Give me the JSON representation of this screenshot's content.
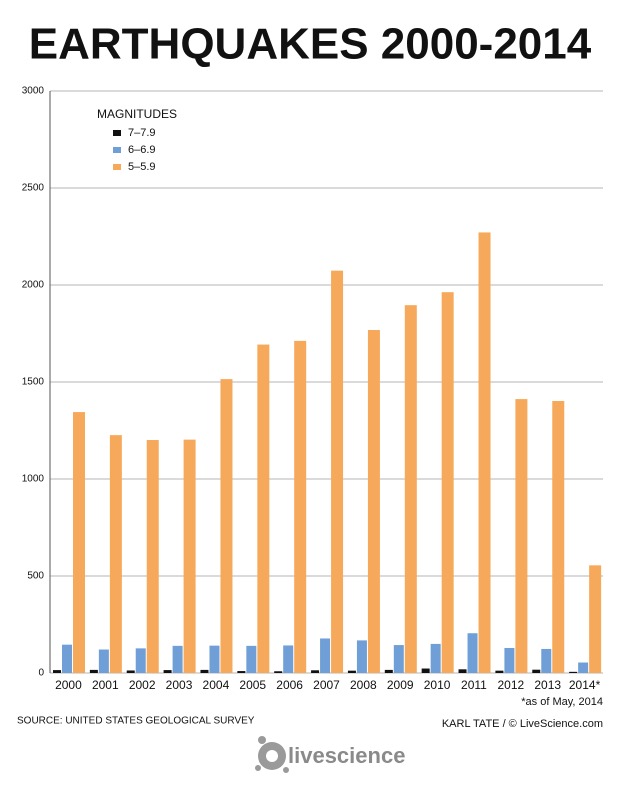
{
  "chart_data": {
    "type": "bar",
    "title": "EARTHQUAKES 2000-2014",
    "legend_title": "MAGNITUDES",
    "categories": [
      "2000",
      "2001",
      "2002",
      "2003",
      "2004",
      "2005",
      "2006",
      "2007",
      "2008",
      "2009",
      "2010",
      "2011",
      "2012",
      "2013",
      "2014*"
    ],
    "series": [
      {
        "name": "7–7.9",
        "color": "#111111",
        "values": [
          15,
          16,
          13,
          15,
          16,
          10,
          9,
          14,
          12,
          16,
          23,
          19,
          12,
          17,
          6
        ]
      },
      {
        "name": "6–6.9",
        "color": "#6f9fd6",
        "values": [
          146,
          121,
          127,
          140,
          141,
          140,
          142,
          178,
          168,
          144,
          150,
          205,
          129,
          124,
          54
        ]
      },
      {
        "name": "5–5.9",
        "color": "#f7a95b",
        "values": [
          1345,
          1226,
          1201,
          1203,
          1515,
          1693,
          1712,
          2074,
          1768,
          1896,
          1963,
          2271,
          1412,
          1402,
          555
        ]
      }
    ],
    "ylim": [
      0,
      3000
    ],
    "yticks": [
      0,
      500,
      1000,
      1500,
      2000,
      2500,
      3000
    ],
    "grid": true,
    "note": "*as of May, 2014",
    "source": "SOURCE: UNITED STATES GEOLOGICAL SURVEY",
    "credit": "KARL TATE / © LiveScience.com",
    "logo": "livescience"
  }
}
